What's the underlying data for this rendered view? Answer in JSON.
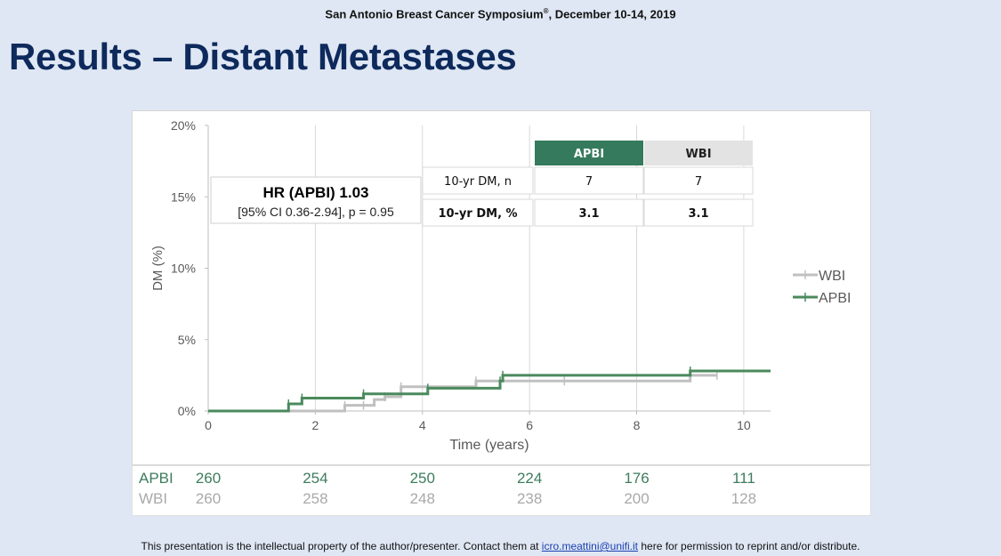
{
  "header": {
    "conference": "San Antonio Breast Cancer Symposium",
    "registered": "®",
    "dates": ", December 10-14, 2019"
  },
  "slide_title": "Results – Distant Metastases",
  "hr_box": {
    "title": "HR (APBI) 1.03",
    "detail": "[95% CI 0.36-2.94], p = 0.95"
  },
  "summary_table": {
    "columns": [
      "APBI",
      "WBI"
    ],
    "rows": [
      {
        "label": "10-yr DM, n",
        "values": [
          "7",
          "7"
        ]
      },
      {
        "label": "10-yr DM, %",
        "values": [
          "3.1",
          "3.1"
        ]
      }
    ]
  },
  "chart_data": {
    "type": "line",
    "step": true,
    "xlabel": "Time (years)",
    "ylabel": "DM (%)",
    "xlim": [
      0,
      10.5
    ],
    "ylim": [
      0,
      20
    ],
    "xticks": [
      0,
      2,
      4,
      6,
      8,
      10
    ],
    "yticks": [
      0,
      5,
      10,
      15,
      20
    ],
    "yticklabels": [
      "0%",
      "5%",
      "10%",
      "15%",
      "20%"
    ],
    "grid": "vertical",
    "legend_position": "right",
    "series": [
      {
        "name": "WBI",
        "color": "#c0c0c0",
        "x": [
          0,
          2.55,
          2.9,
          3.1,
          3.3,
          3.6,
          5.0,
          5.5,
          6.65,
          9.0,
          9.5
        ],
        "y": [
          0,
          0.4,
          0.4,
          0.8,
          1.0,
          1.7,
          2.1,
          2.1,
          2.1,
          2.5,
          2.5
        ],
        "censor_x": [
          2.55,
          2.9,
          3.3,
          3.6,
          5.0,
          6.65,
          9.5
        ]
      },
      {
        "name": "APBI",
        "color": "#4a8a5c",
        "x": [
          0,
          1.5,
          1.75,
          2.9,
          4.1,
          5.45,
          5.5,
          9.0,
          10.5
        ],
        "y": [
          0,
          0.5,
          0.9,
          1.2,
          1.6,
          2.1,
          2.5,
          2.8,
          2.8
        ],
        "censor_x": [
          1.5,
          1.75,
          2.9,
          4.1,
          5.45,
          5.5,
          9.0
        ]
      }
    ]
  },
  "risk_table": {
    "rows": [
      {
        "label": "APBI",
        "color": "#3d7d5c",
        "values": [
          "260",
          "254",
          "250",
          "224",
          "176",
          "111"
        ]
      },
      {
        "label": "WBI",
        "color": "#a9a9a9",
        "values": [
          "260",
          "258",
          "248",
          "238",
          "200",
          "128"
        ]
      }
    ],
    "times": [
      0,
      2,
      4,
      6,
      8,
      10
    ]
  },
  "footer": {
    "before": "This presentation is the intellectual property of the author/presenter. Contact them at ",
    "email": "icro.meattini@unifi.it",
    "after": " here for permission to reprint and/or distribute."
  }
}
